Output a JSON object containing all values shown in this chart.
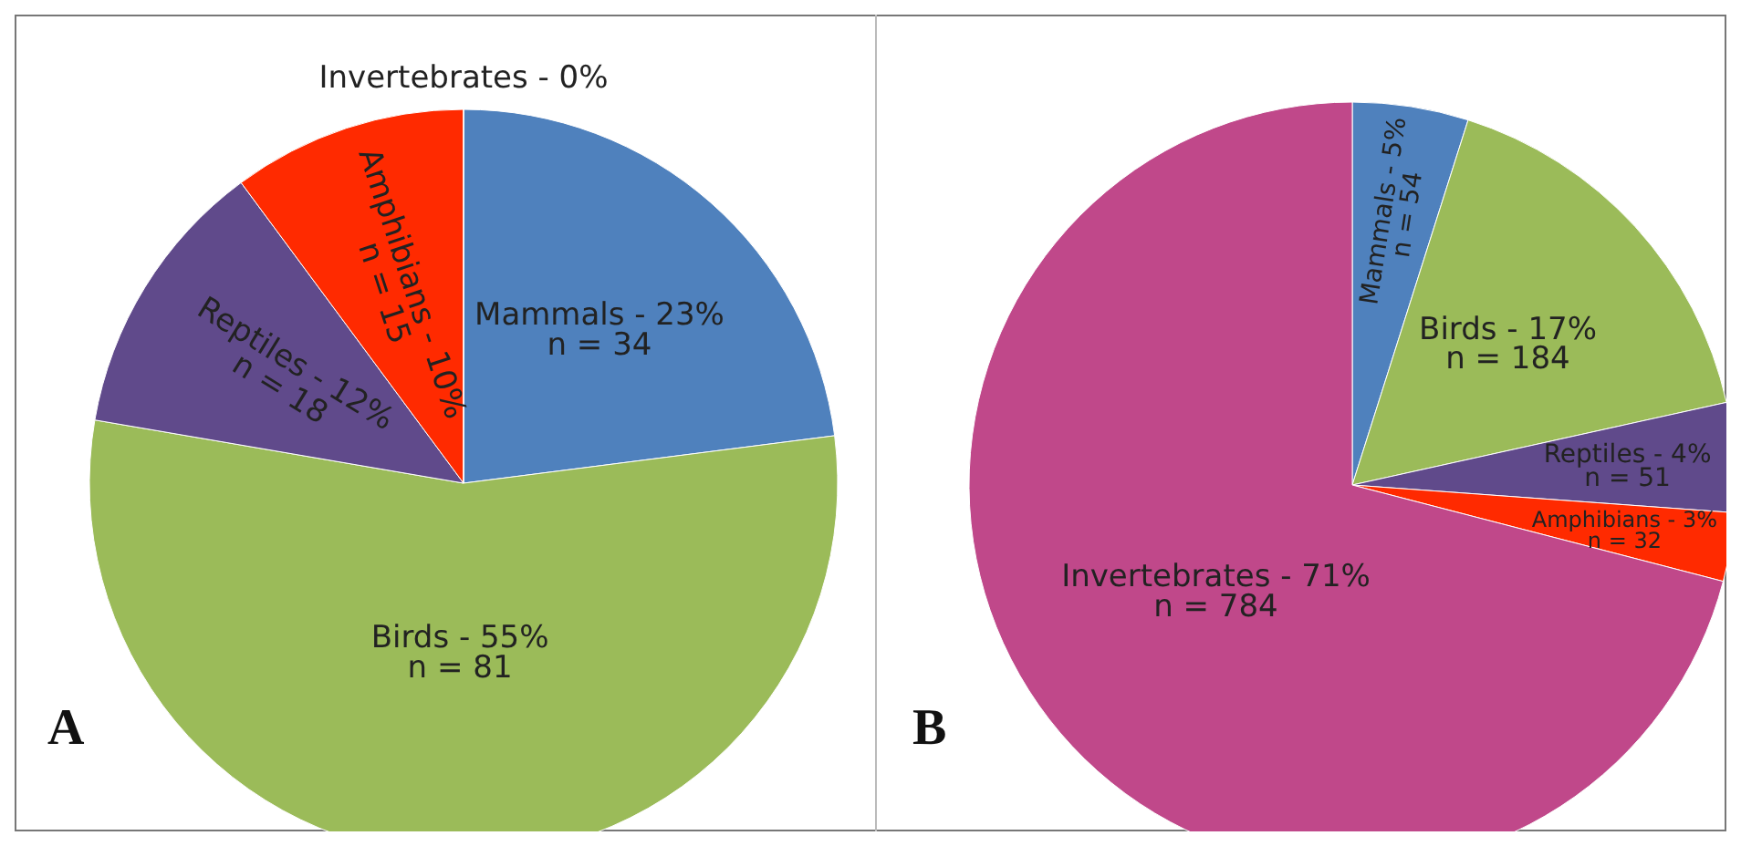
{
  "chart_data": [
    {
      "type": "pie",
      "categories": [
        "Mammals",
        "Birds",
        "Reptiles",
        "Amphibians",
        "Invertebrates"
      ],
      "values": [
        34,
        81,
        18,
        15,
        0
      ],
      "value_labels": [
        "- 23%\nn = 34",
        "- 55%\nn = 81",
        "- 12%\nn = 18",
        "- 10%\nn = 15",
        "- 0%"
      ],
      "colors": [
        "#4f81bd",
        "#9bbb59",
        "#604a8b",
        "#ff2a00",
        "#c0488a"
      ],
      "annotations": [
        "A"
      ]
    },
    {
      "type": "pie",
      "categories": [
        "Mammals",
        "Birds",
        "Reptiles",
        "Amphibians",
        "Invertebrates"
      ],
      "values": [
        54,
        184,
        51,
        32,
        784
      ],
      "value_labels": [
        "- 5%\nn = 54",
        "- 17%\nn = 184",
        "- 4%\nn = 51",
        "- 3%\nn = 32",
        "- 71%\nn = 784"
      ],
      "colors": [
        "#4f81bd",
        "#9bbb59",
        "#604a8b",
        "#ff2a00",
        "#c0488a"
      ],
      "annotations": [
        "B"
      ]
    }
  ]
}
